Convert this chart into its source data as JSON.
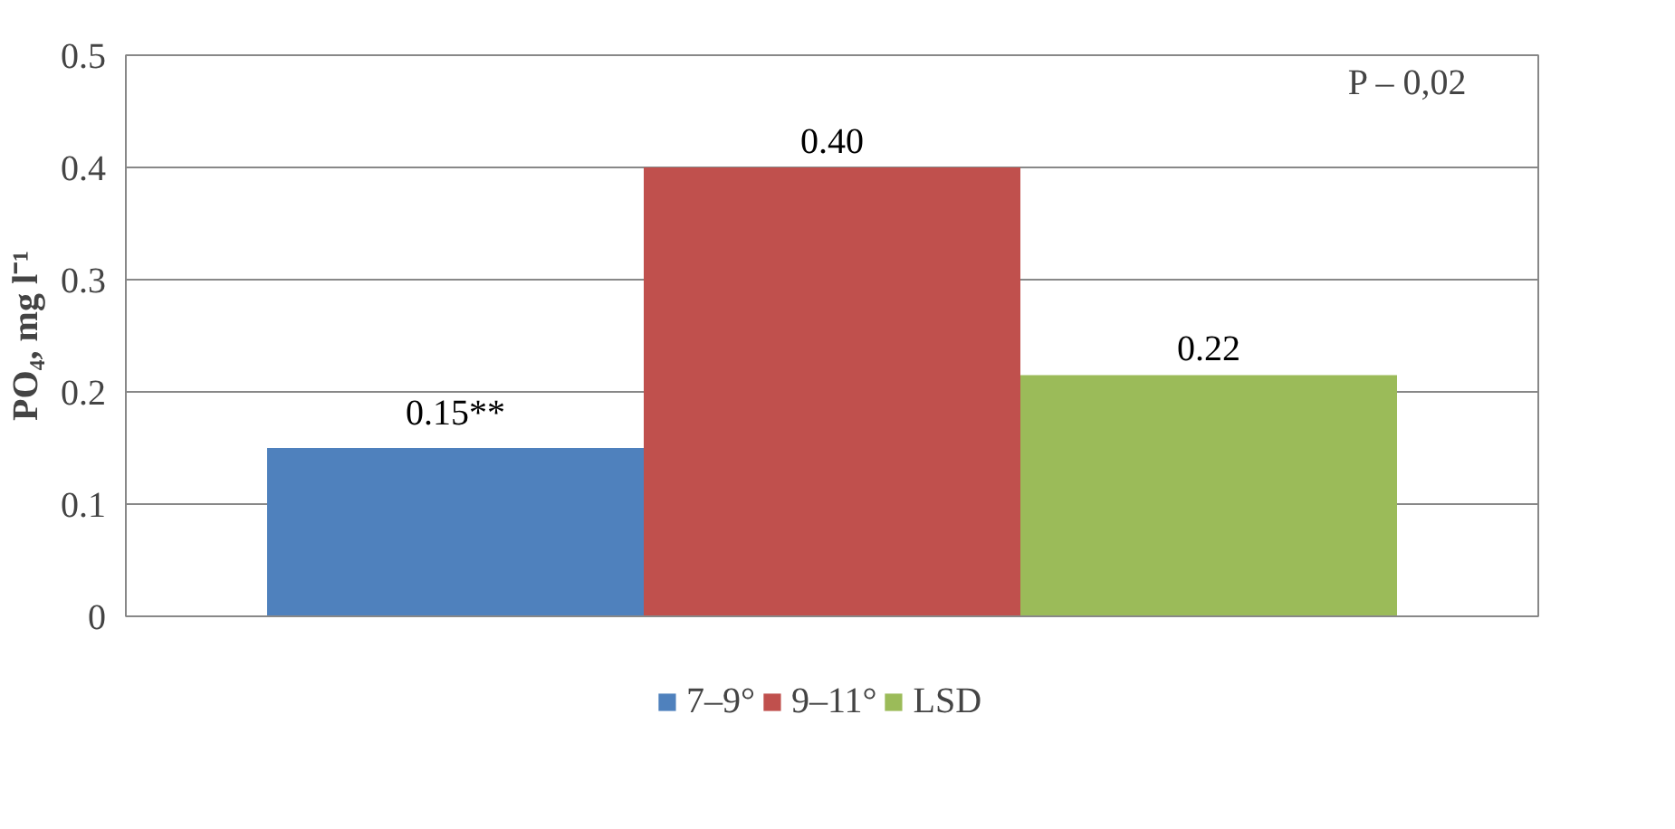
{
  "chart_data": {
    "type": "bar",
    "ylabel": "PO₄, mg l⁻¹",
    "categories": [
      null
    ],
    "series": [
      {
        "name": "7–9°",
        "color": "#4f81bd",
        "values": [
          0.15
        ],
        "value_labels": [
          "0.15**"
        ]
      },
      {
        "name": "9–11°",
        "color": "#c0504d",
        "values": [
          0.4
        ],
        "value_labels": [
          "0.40"
        ]
      },
      {
        "name": "LSD",
        "color": "#9bbb59",
        "values": [
          0.215
        ],
        "value_labels": [
          "0.22"
        ]
      }
    ],
    "ylim": [
      0,
      0.5
    ],
    "yticks": [
      0,
      0.1,
      0.2,
      0.3,
      0.4,
      0.5
    ],
    "grid": "y",
    "legend": "bottom",
    "annotations": [
      "P – 0,02"
    ]
  }
}
